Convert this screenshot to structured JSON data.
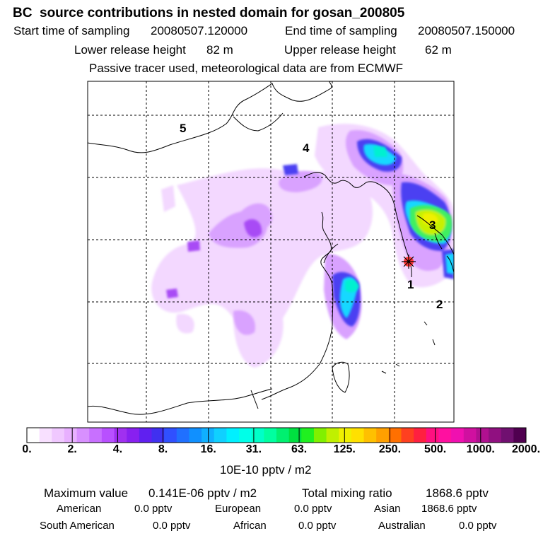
{
  "header": {
    "title": "BC  source contributions in nested domain for gosan_200805",
    "start_label": "Start time of sampling",
    "start_value": "20080507.120000",
    "end_label": "End time of sampling",
    "end_value": "20080507.150000",
    "lower_label": "Lower release height",
    "lower_value": "82 m",
    "upper_label": "Upper release height",
    "upper_value": "62 m",
    "note": "Passive tracer used, meteorological data are from ECMWF"
  },
  "map": {
    "region_labels": [
      "5",
      "4",
      "3",
      "1",
      "2"
    ],
    "receptor_marker": "receptor-star"
  },
  "colorbar": {
    "unit": "10E-10 pptv / m2",
    "tick_labels": [
      "0.",
      "2.",
      "4.",
      "8.",
      "16.",
      "31.",
      "63.",
      "125.",
      "250.",
      "500.",
      "1000.",
      "2000."
    ],
    "colors": [
      "#ffffff",
      "#f8e0ff",
      "#f0c8ff",
      "#e8b0ff",
      "#d890ff",
      "#c870ff",
      "#b850ff",
      "#a030f0",
      "#8820f0",
      "#6020f0",
      "#4030f0",
      "#3050ff",
      "#2070ff",
      "#1090ff",
      "#10b0ff",
      "#10d0ff",
      "#00f0ff",
      "#00ffe8",
      "#00ffc8",
      "#00ffa0",
      "#00f070",
      "#00e040",
      "#20f020",
      "#80f000",
      "#c0f000",
      "#f0f000",
      "#ffe000",
      "#ffc000",
      "#ffa000",
      "#ff7000",
      "#ff4020",
      "#ff2040",
      "#ff1080",
      "#ff10a0",
      "#f010b0",
      "#d010a0",
      "#b01090",
      "#901080",
      "#701070",
      "#500050"
    ]
  },
  "stats": {
    "max_label": "Maximum value",
    "max_value": "0.141E-06 pptv / m2",
    "total_label": "Total mixing ratio",
    "total_value": "1868.6 pptv",
    "regions": [
      {
        "name": "American",
        "value": "0.0 pptv"
      },
      {
        "name": "European",
        "value": "0.0 pptv"
      },
      {
        "name": "Asian",
        "value": "1868.6 pptv"
      },
      {
        "name": "South American",
        "value": "0.0 pptv"
      },
      {
        "name": "African",
        "value": "0.0 pptv"
      },
      {
        "name": "Australian",
        "value": "0.0 pptv"
      }
    ]
  }
}
